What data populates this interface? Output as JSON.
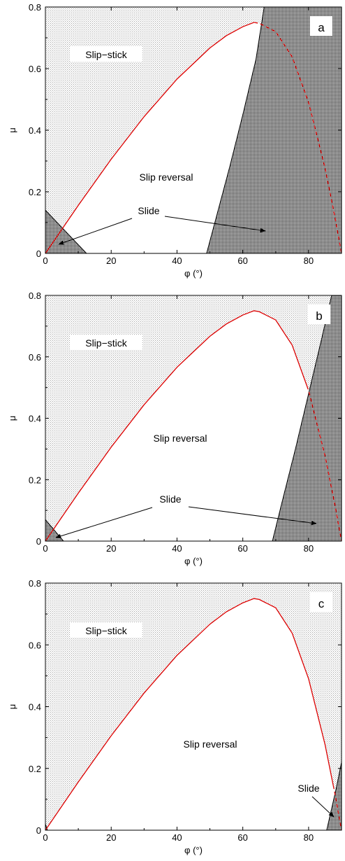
{
  "chart_data": [
    {
      "type": "line",
      "panel_label": "a",
      "xlabel": "φ (°)",
      "ylabel": "μ",
      "xlim": [
        0,
        90
      ],
      "ylim": [
        0,
        0.8
      ],
      "xticks": [
        "0",
        "20",
        "40",
        "60",
        "80"
      ],
      "yticks": [
        "0",
        "0.2",
        "0.4",
        "0.6",
        "0.8"
      ],
      "grid": false,
      "region_labels": [
        "Slip−stick",
        "Slip reversal",
        "Slide"
      ],
      "series": [
        {
          "role": "boundary-curve",
          "color": "#dd0000",
          "solid_until_x": 63.5,
          "x": [
            0,
            10,
            20,
            30,
            40,
            50,
            55,
            60,
            63.4,
            65,
            70,
            75,
            80,
            85,
            88,
            90
          ],
          "y": [
            0,
            0.156,
            0.306,
            0.444,
            0.566,
            0.667,
            0.707,
            0.736,
            0.75,
            0.747,
            0.72,
            0.638,
            0.49,
            0.277,
            0.118,
            0
          ]
        },
        {
          "role": "slide-boundary-left",
          "color": "#000000",
          "x": [
            0,
            12.5
          ],
          "y": [
            0.14,
            0
          ]
        },
        {
          "role": "slide-boundary-right",
          "color": "#000000",
          "x": [
            49,
            52,
            56,
            60,
            64,
            66.5
          ],
          "y": [
            0,
            0.12,
            0.28,
            0.45,
            0.63,
            0.8
          ]
        }
      ]
    },
    {
      "type": "line",
      "panel_label": "b",
      "xlabel": "φ (°)",
      "ylabel": "μ",
      "xlim": [
        0,
        90
      ],
      "ylim": [
        0,
        0.8
      ],
      "xticks": [
        "0",
        "20",
        "40",
        "60",
        "80"
      ],
      "yticks": [
        "0",
        "0.2",
        "0.4",
        "0.6",
        "0.8"
      ],
      "grid": false,
      "region_labels": [
        "Slip−stick",
        "Slip reversal",
        "Slide"
      ],
      "series": [
        {
          "role": "boundary-curve",
          "color": "#dd0000",
          "solid_until_x": 79.5,
          "x": [
            0,
            10,
            20,
            30,
            40,
            50,
            55,
            60,
            63.4,
            65,
            70,
            75,
            80,
            85,
            88,
            90
          ],
          "y": [
            0,
            0.156,
            0.306,
            0.444,
            0.566,
            0.667,
            0.707,
            0.736,
            0.75,
            0.747,
            0.72,
            0.638,
            0.49,
            0.277,
            0.118,
            0
          ]
        },
        {
          "role": "slide-boundary-left",
          "color": "#000000",
          "x": [
            0,
            5.5
          ],
          "y": [
            0.07,
            0
          ]
        },
        {
          "role": "slide-boundary-right",
          "color": "#000000",
          "x": [
            69,
            72,
            76,
            80,
            84,
            87
          ],
          "y": [
            0,
            0.13,
            0.3,
            0.48,
            0.66,
            0.8
          ]
        }
      ]
    },
    {
      "type": "line",
      "panel_label": "c",
      "xlabel": "φ (°)",
      "ylabel": "μ",
      "xlim": [
        0,
        90
      ],
      "ylim": [
        0,
        0.8
      ],
      "xticks": [
        "0",
        "20",
        "40",
        "60",
        "80"
      ],
      "yticks": [
        "0",
        "0.2",
        "0.4",
        "0.6",
        "0.8"
      ],
      "grid": false,
      "region_labels": [
        "Slip−stick",
        "Slip reversal",
        "Slide"
      ],
      "series": [
        {
          "role": "boundary-curve",
          "color": "#dd0000",
          "solid_until_x": 87.5,
          "x": [
            0,
            10,
            20,
            30,
            40,
            50,
            55,
            60,
            63.4,
            65,
            70,
            75,
            80,
            85,
            88,
            90
          ],
          "y": [
            0,
            0.156,
            0.306,
            0.444,
            0.566,
            0.667,
            0.707,
            0.736,
            0.75,
            0.747,
            0.72,
            0.638,
            0.49,
            0.277,
            0.118,
            0
          ]
        },
        {
          "role": "slide-boundary-left",
          "color": "#000000",
          "x": [
            0,
            0.6
          ],
          "y": [
            0.02,
            0
          ]
        },
        {
          "role": "slide-boundary-right",
          "color": "#000000",
          "x": [
            85.5,
            87,
            88.5,
            90
          ],
          "y": [
            0,
            0.07,
            0.14,
            0.22
          ]
        }
      ]
    }
  ],
  "colors": {
    "curve": "#dd0000",
    "hatch_dot": "#9a9a9a",
    "slide_fill": "#7a7a7a",
    "axis": "#000000"
  }
}
